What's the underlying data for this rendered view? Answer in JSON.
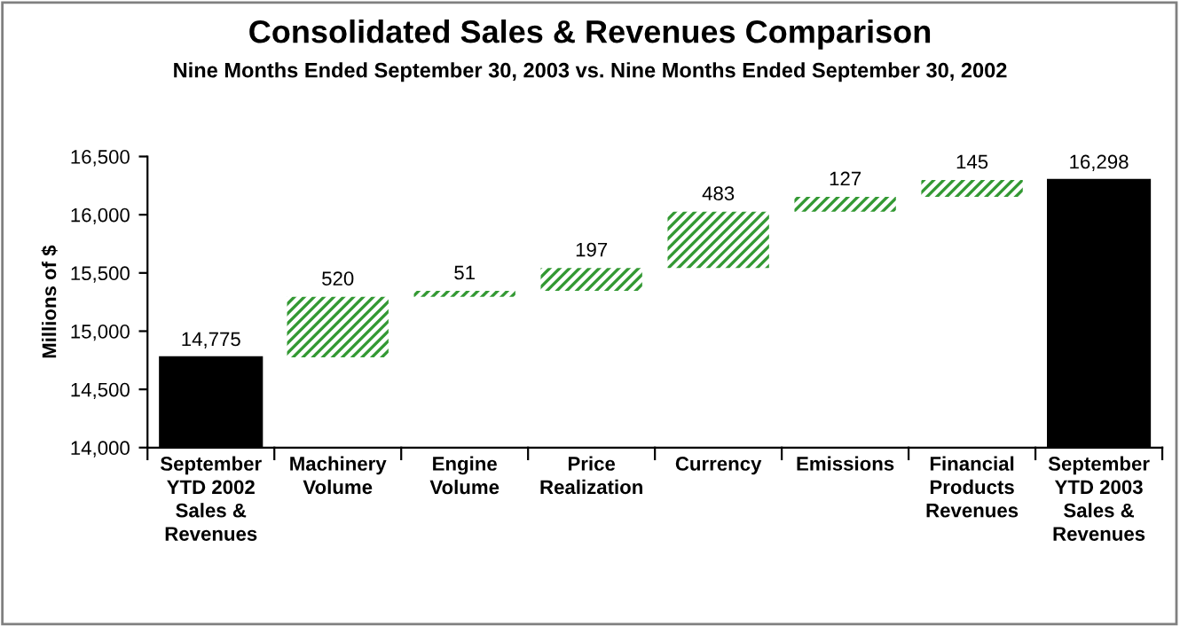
{
  "chart_data": {
    "type": "bar",
    "title": "Consolidated Sales & Revenues Comparison",
    "subtitle": "Nine Months Ended September 30, 2003 vs. Nine Months Ended September 30, 2002",
    "ylabel": "Millions of $",
    "categories": [
      "September\nYTD 2002\nSales &\nRevenues",
      "Machinery\nVolume",
      "Engine\nVolume",
      "Price\nRealization",
      "Currency",
      "Emissions",
      "Financial\nProducts\nRevenues",
      "September\nYTD 2003\nSales &\nRevenues"
    ],
    "values": [
      14775,
      520,
      51,
      197,
      483,
      127,
      145,
      16298
    ],
    "base": [
      null,
      14775,
      15295,
      15346,
      15543,
      16026,
      16153,
      null
    ],
    "colors": [
      "#000000",
      "#339933",
      "#339933",
      "#339933",
      "#339933",
      "#339933",
      "#339933",
      "#000000"
    ],
    "value_labels": [
      "14,775",
      "520",
      "51",
      "197",
      "483",
      "127",
      "145",
      "16,298"
    ],
    "ylim": [
      14000,
      16500
    ],
    "yticks": [
      {
        "value": 14000,
        "label": "14,000"
      },
      {
        "value": 14500,
        "label": "14,500"
      },
      {
        "value": 15000,
        "label": "15,000"
      },
      {
        "value": 15500,
        "label": "15,500"
      },
      {
        "value": 16000,
        "label": "16,000"
      },
      {
        "value": 16500,
        "label": "16,500"
      }
    ],
    "grid": false,
    "legend": false
  }
}
